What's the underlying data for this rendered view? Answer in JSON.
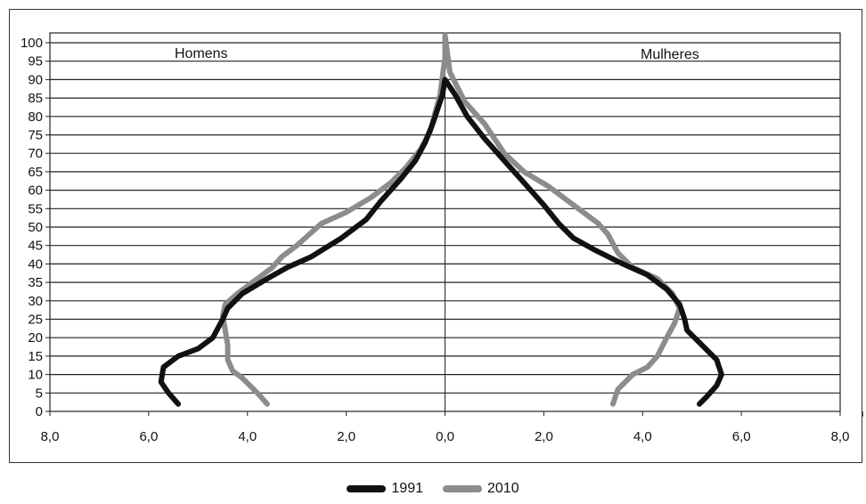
{
  "chart_data": {
    "type": "line",
    "orientation": "population-pyramid",
    "y_ticks": [
      "0",
      "5",
      "10",
      "15",
      "20",
      "25",
      "30",
      "35",
      "40",
      "45",
      "50",
      "55",
      "60",
      "65",
      "70",
      "75",
      "80",
      "85",
      "90",
      "95",
      "100"
    ],
    "x_ticks": [
      "8,0",
      "6,0",
      "4,0",
      "2,0",
      "0,0",
      "2,0",
      "4,0",
      "6,0",
      "8,0"
    ],
    "x_unit": "%",
    "left_label": "Homens",
    "right_label": "Mulheres",
    "xlim": [
      -8,
      8
    ],
    "ylim": [
      0,
      102
    ],
    "grid": true,
    "legend_position": "bottom",
    "series": [
      {
        "name": "1991",
        "color": "#111111",
        "points": [
          [
            -5.4,
            2
          ],
          [
            -5.6,
            5
          ],
          [
            -5.75,
            8
          ],
          [
            -5.7,
            12
          ],
          [
            -5.4,
            15
          ],
          [
            -5.0,
            17
          ],
          [
            -4.7,
            20
          ],
          [
            -4.5,
            25
          ],
          [
            -4.4,
            28
          ],
          [
            -4.1,
            32
          ],
          [
            -3.6,
            36
          ],
          [
            -3.2,
            39
          ],
          [
            -2.7,
            42
          ],
          [
            -2.1,
            47
          ],
          [
            -1.6,
            52
          ],
          [
            -1.3,
            57
          ],
          [
            -0.9,
            63
          ],
          [
            -0.6,
            68
          ],
          [
            -0.4,
            73
          ],
          [
            -0.25,
            78
          ],
          [
            -0.15,
            82
          ],
          [
            -0.05,
            86
          ],
          [
            0,
            90
          ],
          [
            0.2,
            86
          ],
          [
            0.45,
            80
          ],
          [
            0.8,
            74
          ],
          [
            1.2,
            68
          ],
          [
            1.6,
            62
          ],
          [
            2.0,
            56
          ],
          [
            2.3,
            51
          ],
          [
            2.6,
            47
          ],
          [
            3.0,
            44
          ],
          [
            3.6,
            40
          ],
          [
            4.1,
            37
          ],
          [
            4.5,
            33
          ],
          [
            4.75,
            29
          ],
          [
            4.85,
            25
          ],
          [
            4.9,
            22
          ],
          [
            5.2,
            18
          ],
          [
            5.5,
            14
          ],
          [
            5.6,
            10
          ],
          [
            5.5,
            7
          ],
          [
            5.3,
            4
          ],
          [
            5.15,
            2
          ]
        ]
      },
      {
        "name": "2010",
        "color": "#8c8c8c",
        "points": [
          [
            -3.6,
            2
          ],
          [
            -3.8,
            5
          ],
          [
            -4.1,
            9
          ],
          [
            -4.3,
            11
          ],
          [
            -4.4,
            14
          ],
          [
            -4.4,
            18
          ],
          [
            -4.45,
            22
          ],
          [
            -4.5,
            26
          ],
          [
            -4.45,
            29
          ],
          [
            -4.2,
            32
          ],
          [
            -3.8,
            36
          ],
          [
            -3.5,
            39
          ],
          [
            -3.3,
            42
          ],
          [
            -3.0,
            45
          ],
          [
            -2.75,
            48
          ],
          [
            -2.5,
            51
          ],
          [
            -2.0,
            54
          ],
          [
            -1.5,
            58
          ],
          [
            -1.1,
            62
          ],
          [
            -0.8,
            66
          ],
          [
            -0.5,
            71
          ],
          [
            -0.3,
            76
          ],
          [
            -0.2,
            81
          ],
          [
            -0.1,
            86
          ],
          [
            -0.05,
            91
          ],
          [
            0,
            96
          ],
          [
            0,
            102
          ],
          [
            0.1,
            92
          ],
          [
            0.4,
            84
          ],
          [
            0.8,
            78
          ],
          [
            1.2,
            70
          ],
          [
            1.6,
            65
          ],
          [
            2.1,
            61
          ],
          [
            2.6,
            56
          ],
          [
            3.1,
            51
          ],
          [
            3.3,
            48
          ],
          [
            3.5,
            43
          ],
          [
            3.8,
            39
          ],
          [
            4.3,
            36
          ],
          [
            4.6,
            32
          ],
          [
            4.75,
            28
          ],
          [
            4.65,
            24
          ],
          [
            4.45,
            19
          ],
          [
            4.3,
            15
          ],
          [
            4.1,
            12
          ],
          [
            3.8,
            10
          ],
          [
            3.5,
            6
          ],
          [
            3.4,
            2
          ]
        ]
      }
    ]
  }
}
